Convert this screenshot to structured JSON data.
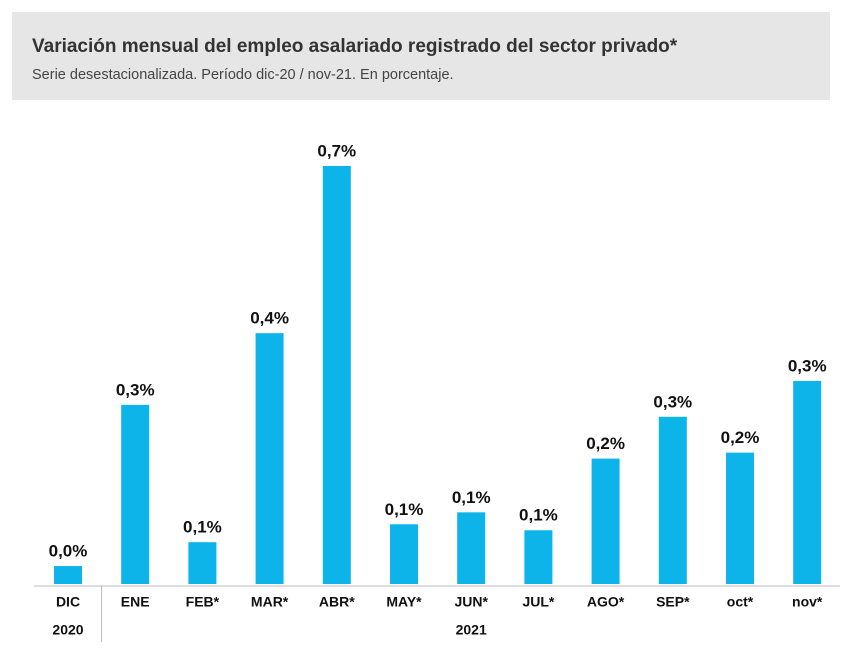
{
  "chart_data": {
    "type": "bar",
    "title": "Variación mensual del empleo asalariado registrado del sector privado*",
    "subtitle": "Serie desestacionalizada. Período dic-20 / nov-21. En porcentaje.",
    "categories": [
      "DIC",
      "ENE",
      "FEB*",
      "MAR*",
      "ABR*",
      "MAY*",
      "JUN*",
      "JUL*",
      "AGO*",
      "SEP*",
      "oct*",
      "nov*"
    ],
    "groups": [
      {
        "label": "2020",
        "categories": 1
      },
      {
        "label": "2021",
        "categories": 11
      }
    ],
    "values": [
      0.03,
      0.3,
      0.07,
      0.42,
      0.7,
      0.1,
      0.12,
      0.09,
      0.21,
      0.28,
      0.22,
      0.34
    ],
    "value_labels": [
      "0,0%",
      "0,3%",
      "0,1%",
      "0,4%",
      "0,7%",
      "0,1%",
      "0,1%",
      "0,1%",
      "0,2%",
      "0,3%",
      "0,2%",
      "0,3%"
    ],
    "color": "#0db4ea"
  }
}
